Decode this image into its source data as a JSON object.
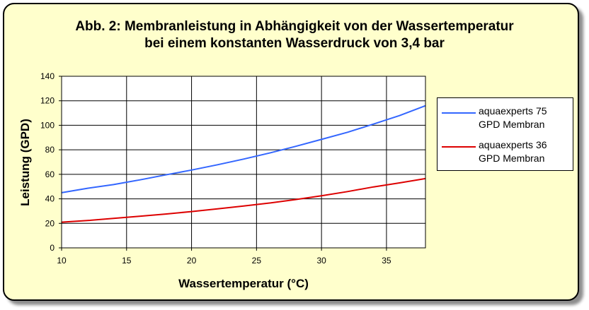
{
  "chart_data": {
    "type": "line",
    "title_line1": "Abb. 2: Membranleistung in Abhängigkeit von der Wassertemperatur",
    "title_line2": "bei einem konstanten Wasserdruck von 3,4 bar",
    "xlabel": "Wassertemperatur (°C)",
    "ylabel": "Leistung (GPD)",
    "xlim": [
      10,
      38
    ],
    "ylim": [
      0,
      140
    ],
    "xticks": [
      10,
      15,
      20,
      25,
      30,
      35
    ],
    "yticks": [
      0,
      20,
      40,
      60,
      80,
      100,
      120,
      140
    ],
    "grid": true,
    "legend_position": "right",
    "series": [
      {
        "name": "aquaexperts 75 GPD Membran",
        "color": "#3366ff",
        "x": [
          10,
          12,
          14,
          16,
          18,
          20,
          22,
          24,
          26,
          28,
          30,
          32,
          34,
          36,
          38
        ],
        "y": [
          45,
          48.6,
          51.6,
          55.4,
          59.5,
          63.5,
          67.8,
          72.4,
          77.4,
          82.8,
          88.5,
          94.3,
          101,
          107.9,
          116
        ]
      },
      {
        "name": "aquaexperts 36 GPD Membran",
        "color": "#dd0000",
        "x": [
          10,
          12,
          14,
          16,
          18,
          20,
          22,
          24,
          26,
          28,
          30,
          32,
          34,
          36,
          38
        ],
        "y": [
          21,
          22.3,
          24,
          25.8,
          27.6,
          29.6,
          31.8,
          34.1,
          36.6,
          39.4,
          42.5,
          45.9,
          49.7,
          53,
          56.5
        ]
      }
    ]
  }
}
